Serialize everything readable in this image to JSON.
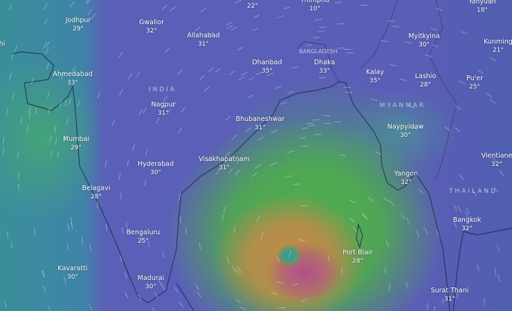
{
  "map": {
    "layer": "temperature / wind",
    "colors": {
      "land": "#5b5eb6",
      "sea": "#3f84a8",
      "bay_green": "#4fae4a",
      "cyclone_orange": "#c08a4a",
      "cyclone_core": "#b0508a"
    },
    "countries": [
      {
        "label": "INDIA"
      },
      {
        "label": "BANGLADESH"
      },
      {
        "label": "MYANMAR"
      },
      {
        "label": "THAILAND"
      }
    ],
    "cities": [
      {
        "name": "hi",
        "temp": ""
      },
      {
        "name": "Jodhpur",
        "temp": "29°"
      },
      {
        "name": "Gwalior",
        "temp": "32°"
      },
      {
        "name": "Allahabad",
        "temp": "31°"
      },
      {
        "name": "",
        "temp": "22°"
      },
      {
        "name": "Thimphu",
        "temp": "10°"
      },
      {
        "name": "Yanyuan",
        "temp": "18°"
      },
      {
        "name": "Ahmedabad",
        "temp": "33°"
      },
      {
        "name": "Dhanbad",
        "temp": "35°"
      },
      {
        "name": "Dhaka",
        "temp": "33°"
      },
      {
        "name": "Kalay",
        "temp": "35°"
      },
      {
        "name": "Myitkyina",
        "temp": "30°"
      },
      {
        "name": "Kunming",
        "temp": "21°"
      },
      {
        "name": "Lashio",
        "temp": "28°"
      },
      {
        "name": "Pu'er",
        "temp": "25°"
      },
      {
        "name": "Nagpur",
        "temp": "31°"
      },
      {
        "name": "Bhubaneshwar",
        "temp": "31°"
      },
      {
        "name": "Mumbai",
        "temp": "29°"
      },
      {
        "name": "Naypyidaw",
        "temp": "30°"
      },
      {
        "name": "Visakhapatnam",
        "temp": "31°"
      },
      {
        "name": "Hyderabad",
        "temp": "30°"
      },
      {
        "name": "Vientiane",
        "temp": "32°"
      },
      {
        "name": "Belagavi",
        "temp": "28°"
      },
      {
        "name": "Yangon",
        "temp": "32°"
      },
      {
        "name": "Bengaluru",
        "temp": "25°"
      },
      {
        "name": "Bangkok",
        "temp": "32°"
      },
      {
        "name": "Port Blair",
        "temp": "28°"
      },
      {
        "name": "Kavaratti",
        "temp": "30°"
      },
      {
        "name": "Madurai",
        "temp": "30°"
      },
      {
        "name": "Surat Thani",
        "temp": "31°"
      }
    ]
  }
}
